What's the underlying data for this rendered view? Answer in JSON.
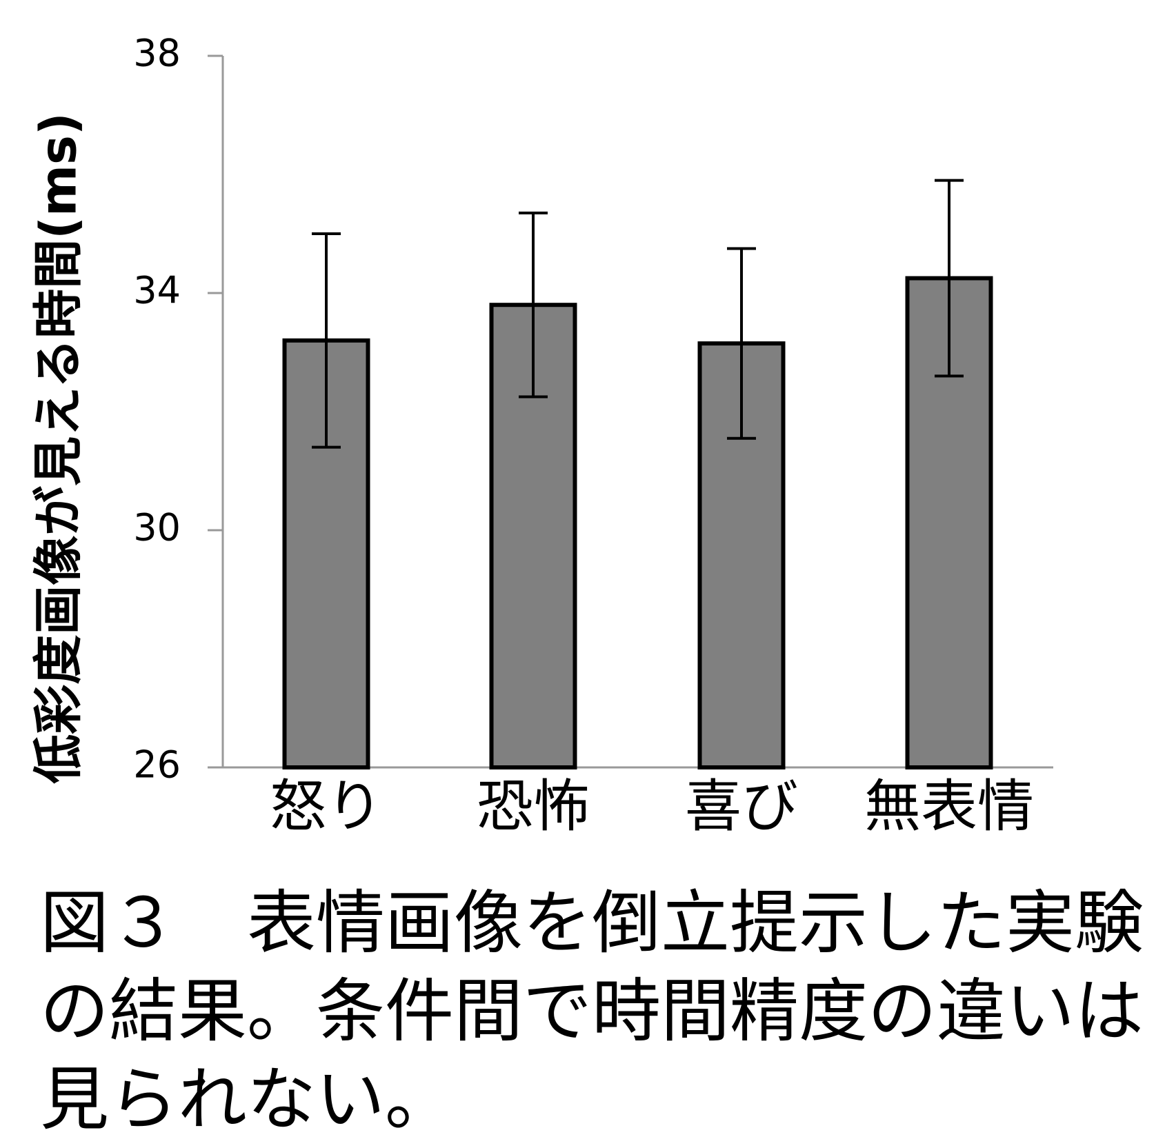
{
  "chart_data": {
    "type": "bar",
    "ylabel": "低彩度画像が見える時間(ms)",
    "categories": [
      "怒り",
      "恐怖",
      "喜び",
      "無表情"
    ],
    "values": [
      33.2,
      33.8,
      33.15,
      34.25
    ],
    "errors": [
      1.8,
      1.55,
      1.6,
      1.65
    ],
    "color": "#808080",
    "ylim": [
      26,
      38
    ],
    "yticks": [
      26,
      30,
      34,
      38
    ],
    "grid": false
  },
  "caption": "図３　表情画像を倒立提示した実験の結果。条件間で時間精度の違いは見られない。"
}
